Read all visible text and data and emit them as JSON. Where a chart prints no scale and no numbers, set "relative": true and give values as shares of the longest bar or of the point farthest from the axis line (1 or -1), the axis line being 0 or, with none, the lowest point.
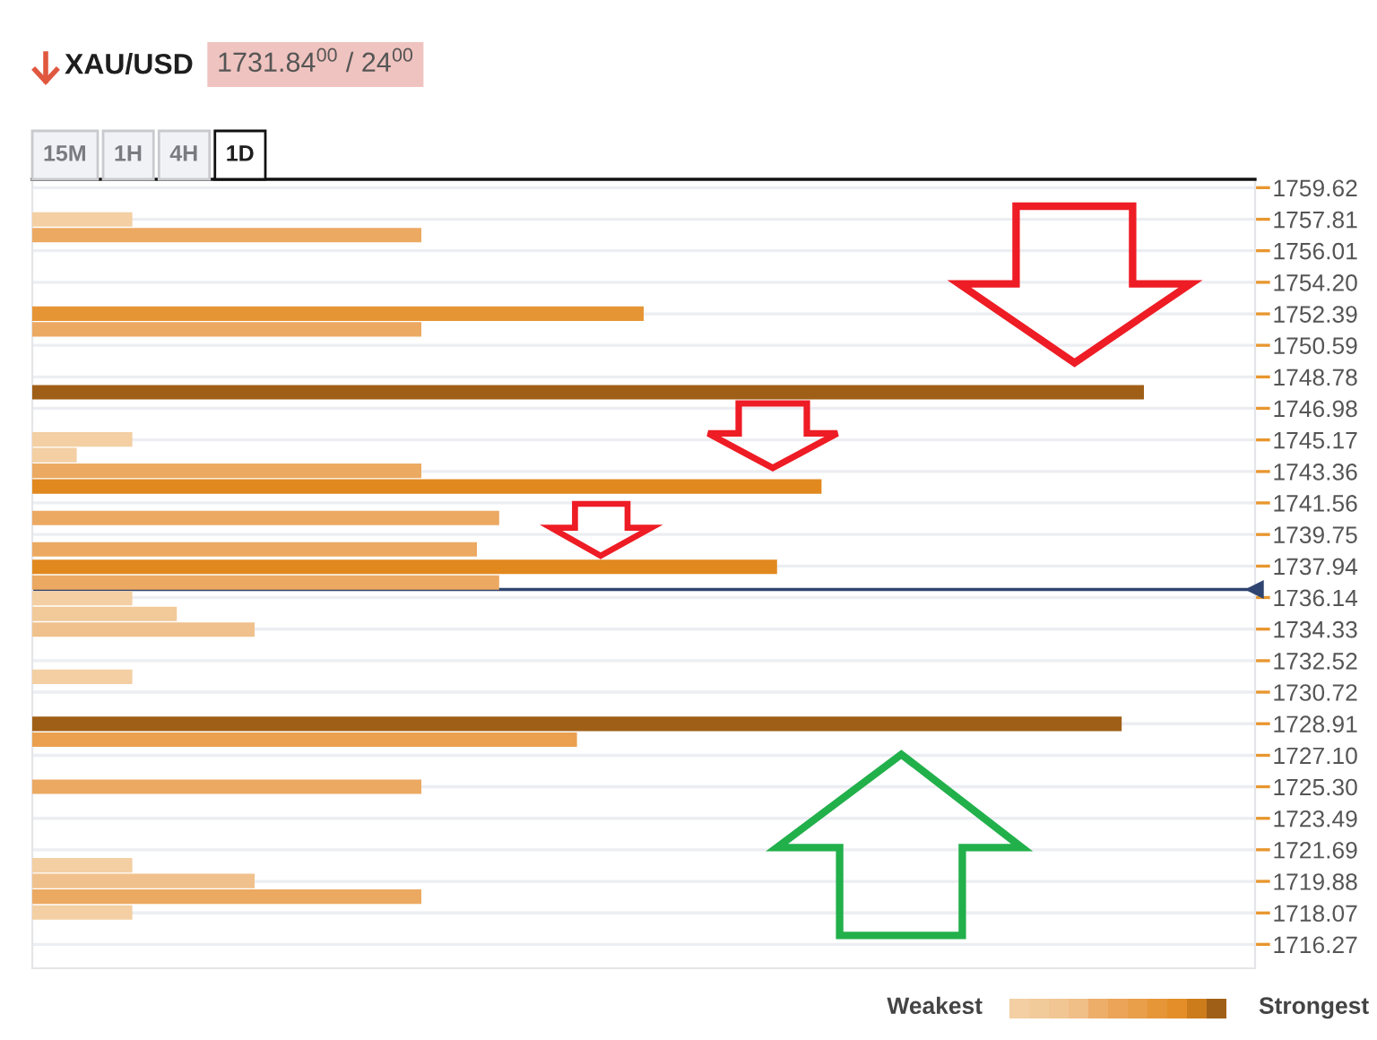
{
  "chart_data": {
    "type": "bar",
    "orientation": "horizontal",
    "relative": true,
    "tick_labels": "y",
    "title": "XAU/USD",
    "subtitle": "1731.84$^{00}$ / 24$^{00}$",
    "annotations": [
      "15M",
      "1H",
      "4H",
      "1D",
      "Weakest",
      "Strongest"
    ],
    "x": [
      1757.8,
      1756.9,
      1752.4,
      1751.5,
      1747.9,
      1745.2,
      1744.3,
      1743.4,
      1742.5,
      1740.7,
      1738.9,
      1737.9,
      1737.0,
      1736.1,
      1735.2,
      1734.3,
      1731.6,
      1728.9,
      1728.0,
      1725.3,
      1720.8,
      1719.9,
      1719.0,
      1718.1
    ],
    "values": [
      0.09,
      0.35,
      0.55,
      0.35,
      1,
      0.09,
      0.04,
      0.35,
      0.71,
      0.42,
      0.4,
      0.67,
      0.42,
      0.09,
      0.13,
      0.2,
      0.09,
      0.98,
      0.49,
      0.35,
      0.09,
      0.2,
      0.35,
      0.09
    ],
    "colors": [
      "#f3cfa3",
      "#eca962",
      "#e69535",
      "#eca962",
      "#a05f17",
      "#f3cfa3",
      "#f3cfa3",
      "#eca962",
      "#e1891f",
      "#eca962",
      "#eca962",
      "#e1891f",
      "#eca962",
      "#f3cfa3",
      "#f2c998",
      "#f0c18c",
      "#f3cfa3",
      "#a05f17",
      "#eaa04f",
      "#eca962",
      "#f3cfa3",
      "#f0c18c",
      "#eca962",
      "#f3cfa3"
    ],
    "ylim": [
      1714.9,
      1760.1
    ],
    "yticks": [
      1759.62,
      1757.81,
      1756.01,
      {
        "value": 1754.2,
        "label": "1754.20"
      },
      1752.39,
      1750.59,
      1748.78,
      1746.98,
      1745.17,
      1743.36,
      1741.56,
      1739.75,
      1737.94,
      1736.14,
      1734.33,
      1732.52,
      1730.72,
      1728.91,
      {
        "value": 1727.1,
        "label": "1727.10"
      },
      {
        "value": 1725.3,
        "label": "1725.30"
      },
      1723.49,
      1721.69,
      1719.88,
      1718.07,
      1716.27
    ],
    "grid": "y",
    "ref_lines": [
      {
        "axis": "y",
        "value": 1736.6,
        "label": null,
        "color": "#2f4470"
      }
    ]
  }
}
